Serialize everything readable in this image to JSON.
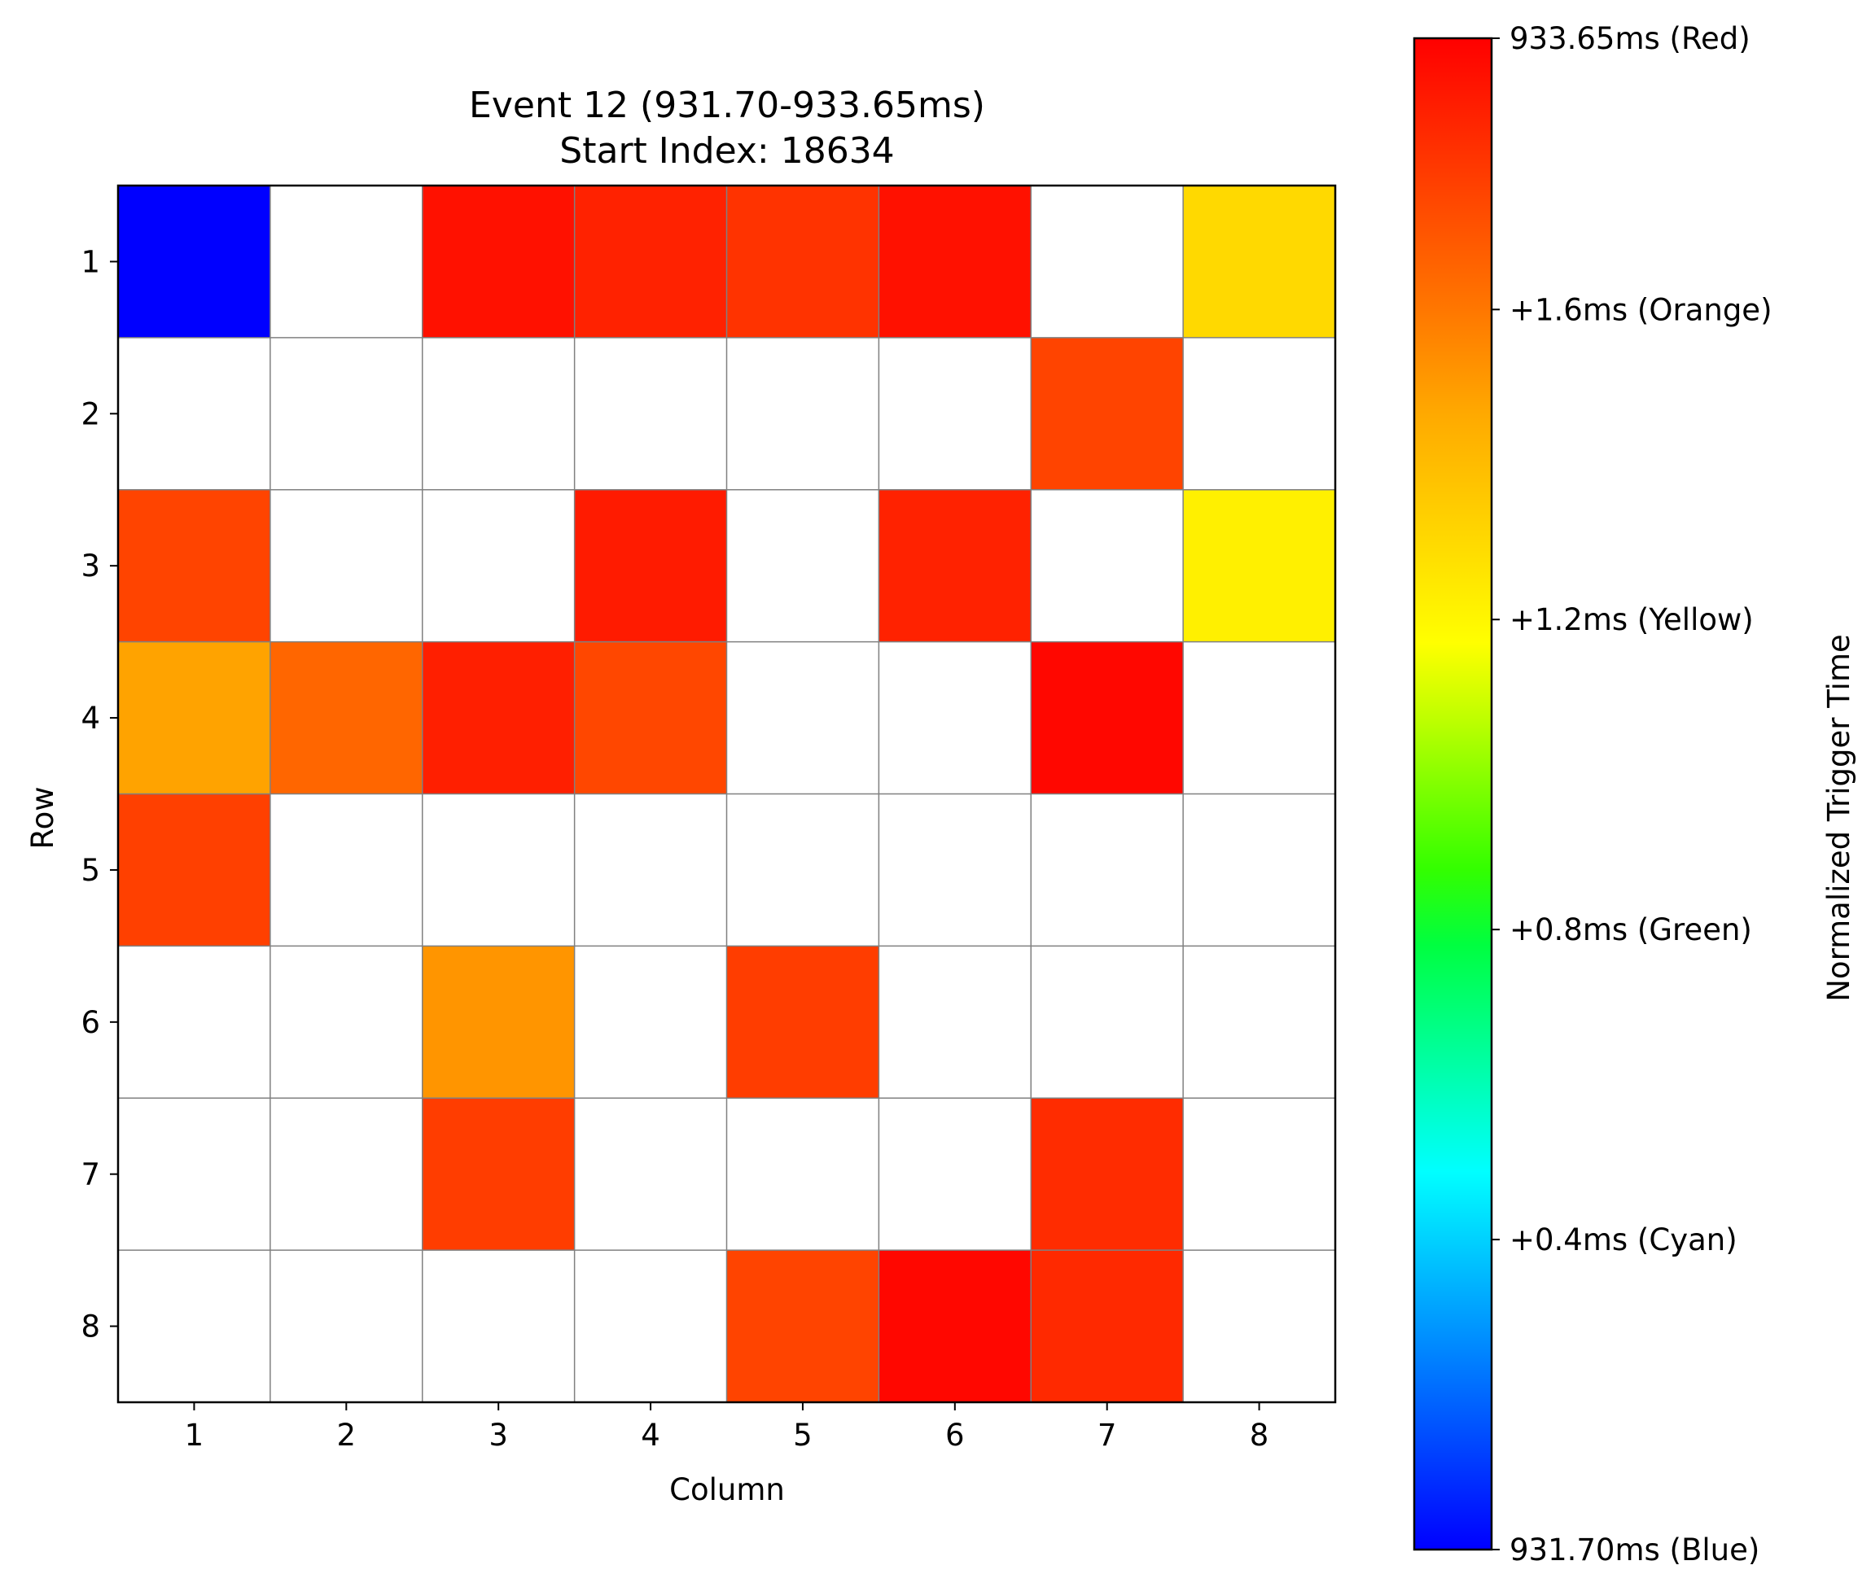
{
  "chart_data": {
    "type": "heatmap",
    "title_line1": "Event 12 (931.70-933.65ms)",
    "title_line2": "Start Index: 18634",
    "xlabel": "Column",
    "ylabel": "Row",
    "x_ticks": [
      "1",
      "2",
      "3",
      "4",
      "5",
      "6",
      "7",
      "8"
    ],
    "y_ticks": [
      "1",
      "2",
      "3",
      "4",
      "5",
      "6",
      "7",
      "8"
    ],
    "grid": true,
    "empty_cell_color": "#ffffff",
    "grid_color": "#808080",
    "value_range_ms": [
      0,
      1.95
    ],
    "colorbar": {
      "label": "Normalized Trigger Time",
      "ticks": [
        {
          "value": 0,
          "label": "931.70ms (Blue)"
        },
        {
          "value": 0.4,
          "label": "+0.4ms (Cyan)"
        },
        {
          "value": 0.8,
          "label": "+0.8ms (Green)"
        },
        {
          "value": 1.2,
          "label": "+1.2ms (Yellow)"
        },
        {
          "value": 1.6,
          "label": "+1.6ms (Orange)"
        },
        {
          "value": 1.95,
          "label": "933.65ms (Red)"
        }
      ],
      "colorscale": [
        {
          "stop": 0.0,
          "color": "#0000ff"
        },
        {
          "stop": 0.2,
          "color": "#00ccff"
        },
        {
          "stop": 0.25,
          "color": "#00ffff"
        },
        {
          "stop": 0.4,
          "color": "#00ff40"
        },
        {
          "stop": 0.45,
          "color": "#33ff00"
        },
        {
          "stop": 0.55,
          "color": "#bfff00"
        },
        {
          "stop": 0.6,
          "color": "#ffff00"
        },
        {
          "stop": 0.75,
          "color": "#ffaa00"
        },
        {
          "stop": 0.82,
          "color": "#ff7700"
        },
        {
          "stop": 1.0,
          "color": "#ff0000"
        }
      ]
    },
    "cells": [
      {
        "row": 1,
        "col": 1,
        "value": 0.0
      },
      {
        "row": 1,
        "col": 3,
        "value": 1.9
      },
      {
        "row": 1,
        "col": 4,
        "value": 1.85
      },
      {
        "row": 1,
        "col": 5,
        "value": 1.8
      },
      {
        "row": 1,
        "col": 6,
        "value": 1.9
      },
      {
        "row": 1,
        "col": 8,
        "value": 1.3
      },
      {
        "row": 2,
        "col": 7,
        "value": 1.75
      },
      {
        "row": 3,
        "col": 1,
        "value": 1.75
      },
      {
        "row": 3,
        "col": 4,
        "value": 1.87
      },
      {
        "row": 3,
        "col": 6,
        "value": 1.85
      },
      {
        "row": 3,
        "col": 8,
        "value": 1.22
      },
      {
        "row": 4,
        "col": 1,
        "value": 1.48
      },
      {
        "row": 4,
        "col": 2,
        "value": 1.65
      },
      {
        "row": 4,
        "col": 3,
        "value": 1.86
      },
      {
        "row": 4,
        "col": 4,
        "value": 1.74
      },
      {
        "row": 4,
        "col": 7,
        "value": 1.93
      },
      {
        "row": 5,
        "col": 1,
        "value": 1.76
      },
      {
        "row": 6,
        "col": 3,
        "value": 1.52
      },
      {
        "row": 6,
        "col": 5,
        "value": 1.77
      },
      {
        "row": 7,
        "col": 3,
        "value": 1.77
      },
      {
        "row": 7,
        "col": 7,
        "value": 1.82
      },
      {
        "row": 8,
        "col": 5,
        "value": 1.75
      },
      {
        "row": 8,
        "col": 6,
        "value": 1.93
      },
      {
        "row": 8,
        "col": 7,
        "value": 1.83
      }
    ]
  }
}
